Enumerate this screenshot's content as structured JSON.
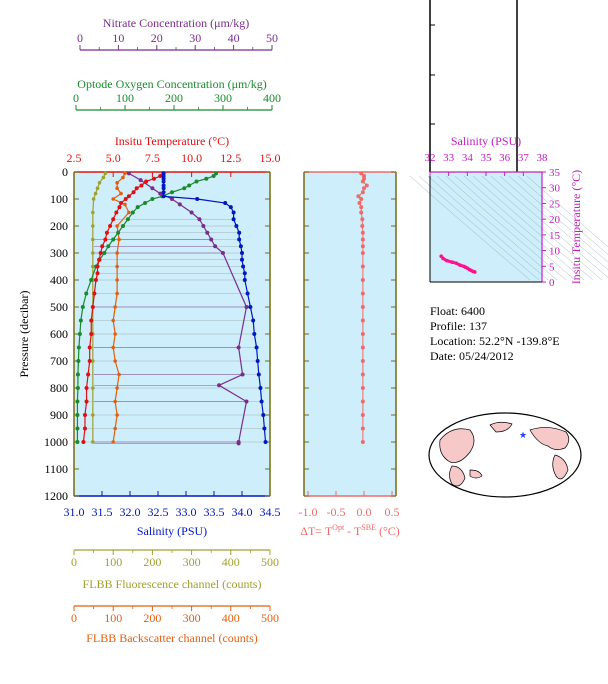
{
  "colors": {
    "nitrate": "#7b2d8e",
    "oxygen": "#1a8a2e",
    "temperature": "#e01010",
    "salinity": "#0018c0",
    "fluorescence": "#a0a030",
    "backscatter": "#e06010",
    "deltaT": "#f06a6a",
    "panel_bg": "#cdeefa",
    "pressure_axis": "#7a6a10",
    "ts_axis": "#c020c0",
    "ts_points": "#ff1090"
  },
  "axes": {
    "nitrate": {
      "label": "Nitrate Concentration (μm/kg)",
      "ticks": [
        "0",
        "10",
        "20",
        "30",
        "40",
        "50"
      ],
      "range": [
        0,
        50
      ]
    },
    "oxygen": {
      "label": "Optode Oxygen Concentration (μm/kg)",
      "ticks": [
        "0",
        "100",
        "200",
        "300",
        "400"
      ],
      "range": [
        0,
        400
      ]
    },
    "temperature": {
      "label": "Insitu Temperature (°C)",
      "ticks": [
        "2.5",
        "5.0",
        "7.5",
        "10.0",
        "12.5",
        "15.0"
      ],
      "range": [
        2.5,
        15.0
      ]
    },
    "salinity": {
      "label": "Salinity (PSU)",
      "ticks": [
        "31.0",
        "31.5",
        "32.0",
        "32.5",
        "33.0",
        "33.5",
        "34.0",
        "34.5"
      ],
      "range": [
        31.0,
        34.5
      ]
    },
    "pressure": {
      "label": "Pressure (decibar)",
      "ticks": [
        "0",
        "100",
        "200",
        "300",
        "400",
        "500",
        "600",
        "700",
        "800",
        "900",
        "1000",
        "1100",
        "1200"
      ],
      "range": [
        0,
        1200
      ]
    },
    "fluorescence": {
      "label": "FLBB Fluorescence channel (counts)",
      "ticks": [
        "0",
        "100",
        "200",
        "300",
        "400",
        "500"
      ],
      "range": [
        0,
        500
      ]
    },
    "backscatter": {
      "label": "FLBB Backscatter channel (counts)",
      "ticks": [
        "0",
        "100",
        "200",
        "300",
        "400",
        "500"
      ],
      "range": [
        0,
        500
      ]
    },
    "deltaT": {
      "label": "ΔT= T",
      "sup1": "Opt",
      "mid": " - T",
      "sup2": "SBE",
      "unit": " (°C)",
      "ticks": [
        "-1.0",
        "-0.5",
        "0.0",
        "0.5"
      ],
      "range": [
        -1.0,
        0.5
      ]
    },
    "ts_salinity": {
      "label": "Salinity (PSU)",
      "ticks": [
        "32",
        "33",
        "34",
        "35",
        "36",
        "37",
        "38"
      ],
      "range": [
        32,
        38
      ]
    },
    "ts_temperature": {
      "label": "Insitu Temperature (°C)",
      "ticks": [
        "0",
        "5",
        "10",
        "15",
        "20",
        "25",
        "30",
        "35"
      ],
      "range": [
        0,
        35
      ]
    }
  },
  "float_info": {
    "float": "Float:  6400",
    "profile": "Profile:  137",
    "location": "Location:  52.2°N  -139.8°E",
    "date": "Date:  05/24/2012"
  },
  "chart_data": [
    {
      "type": "line",
      "name": "Temperature profile",
      "pressure": [
        5,
        15,
        25,
        35,
        50,
        60,
        75,
        90,
        100,
        115,
        130,
        150,
        175,
        200,
        225,
        250,
        275,
        300,
        325,
        350,
        375,
        400,
        450,
        500,
        550,
        600,
        650,
        700,
        750,
        800,
        850,
        900,
        950,
        1000
      ],
      "temperature": [
        8.2,
        8.0,
        7.6,
        7.1,
        6.8,
        6.5,
        6.3,
        6.0,
        5.8,
        5.5,
        5.4,
        5.2,
        5.0,
        4.8,
        4.6,
        4.5,
        4.3,
        4.2,
        4.1,
        4.0,
        4.0,
        3.9,
        3.8,
        3.7,
        3.6,
        3.6,
        3.5,
        3.5,
        3.4,
        3.3,
        3.3,
        3.2,
        3.2,
        3.1
      ]
    },
    {
      "type": "line",
      "name": "Salinity profile",
      "pressure": [
        5,
        15,
        25,
        35,
        50,
        60,
        75,
        90,
        100,
        115,
        130,
        150,
        175,
        200,
        225,
        250,
        275,
        300,
        325,
        350,
        375,
        400,
        450,
        500,
        550,
        600,
        650,
        700,
        750,
        800,
        850,
        900,
        950,
        1000
      ],
      "salinity": [
        32.6,
        32.6,
        32.6,
        32.6,
        32.6,
        32.6,
        32.6,
        32.6,
        33.2,
        33.7,
        33.8,
        33.85,
        33.85,
        33.9,
        33.95,
        33.95,
        33.98,
        34.0,
        34.0,
        34.02,
        34.05,
        34.05,
        34.1,
        34.15,
        34.2,
        34.22,
        34.26,
        34.28,
        34.3,
        34.33,
        34.35,
        34.38,
        34.4,
        34.42
      ]
    },
    {
      "type": "line",
      "name": "Oxygen profile",
      "pressure": [
        5,
        15,
        25,
        35,
        50,
        60,
        75,
        90,
        100,
        115,
        130,
        150,
        175,
        200,
        225,
        250,
        275,
        300,
        325,
        350,
        400,
        450,
        500,
        550,
        600,
        650,
        700,
        750,
        800,
        850,
        900,
        950,
        1000
      ],
      "oxygen": [
        290,
        285,
        270,
        250,
        235,
        225,
        200,
        180,
        160,
        145,
        130,
        120,
        110,
        100,
        90,
        80,
        70,
        62,
        52,
        45,
        35,
        25,
        18,
        14,
        12,
        10,
        9,
        8,
        8,
        7,
        7,
        7,
        7
      ]
    },
    {
      "type": "scatter",
      "name": "Nitrate profile",
      "pressure": [
        5,
        30,
        60,
        80,
        100,
        120,
        150,
        175,
        200,
        225,
        250,
        275,
        300,
        500,
        650,
        750,
        790,
        850,
        1000,
        1005
      ],
      "nitrate": [
        14,
        17,
        20,
        22,
        25,
        27,
        30,
        32,
        33,
        34,
        35,
        36,
        38,
        44,
        42,
        43,
        37,
        44,
        42,
        42
      ]
    },
    {
      "type": "line",
      "name": "Fluorescence profile",
      "pressure": [
        5,
        20,
        40,
        60,
        80,
        100,
        150,
        200,
        250,
        300,
        350,
        400,
        500,
        600,
        700,
        800,
        900,
        1000
      ],
      "fluorescence": [
        80,
        75,
        65,
        60,
        55,
        50,
        48,
        48,
        48,
        48,
        48,
        48,
        48,
        48,
        48,
        48,
        48,
        48
      ]
    },
    {
      "type": "line",
      "name": "Backscatter profile",
      "pressure": [
        5,
        20,
        40,
        60,
        80,
        100,
        120,
        150,
        200,
        250,
        300,
        350,
        400,
        450,
        500,
        550,
        600,
        650,
        700,
        750,
        800,
        850,
        900,
        950,
        1000
      ],
      "backscatter": [
        130,
        125,
        110,
        110,
        120,
        100,
        130,
        140,
        110,
        115,
        110,
        110,
        110,
        110,
        105,
        100,
        105,
        100,
        105,
        115,
        110,
        105,
        110,
        105,
        100
      ]
    },
    {
      "type": "scatter",
      "name": "Delta T profile",
      "pressure": [
        5,
        15,
        25,
        35,
        50,
        60,
        75,
        90,
        100,
        115,
        130,
        150,
        175,
        200,
        225,
        250,
        275,
        300,
        350,
        400,
        450,
        500,
        550,
        600,
        650,
        700,
        750,
        800,
        850,
        900,
        950,
        1000
      ],
      "deltaT": [
        -0.05,
        0.0,
        0.0,
        -0.02,
        0.05,
        0.0,
        -0.02,
        -0.1,
        -0.05,
        -0.08,
        -0.05,
        -0.05,
        -0.03,
        -0.03,
        -0.02,
        -0.02,
        -0.02,
        -0.02,
        -0.02,
        -0.02,
        -0.02,
        -0.02,
        -0.02,
        -0.02,
        -0.02,
        -0.02,
        -0.02,
        -0.02,
        -0.02,
        -0.02,
        -0.02,
        -0.02
      ]
    },
    {
      "type": "line",
      "name": "T-S diagram",
      "salinity": [
        32.6,
        32.7,
        32.9,
        33.2,
        33.4,
        33.6,
        33.8,
        33.9,
        34.0,
        34.1,
        34.2,
        34.3,
        34.4
      ],
      "temperature": [
        8.2,
        7.5,
        6.8,
        6.3,
        6.0,
        5.4,
        5.0,
        4.7,
        4.4,
        4.0,
        3.7,
        3.4,
        3.2
      ]
    }
  ]
}
